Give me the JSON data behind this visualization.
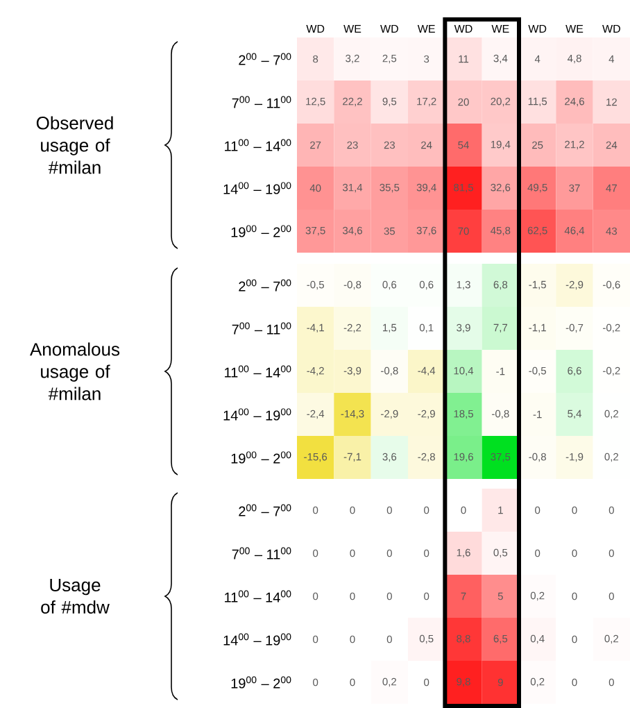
{
  "chart_data": [
    {
      "type": "heatmap",
      "ylabel": "Observed usage of #milan",
      "categories": [
        "WD",
        "WE",
        "WD",
        "WE",
        "WD",
        "WE",
        "WD",
        "WE",
        "WD"
      ],
      "y_categories": [
        "2$^{00}$ – 7$^{00}$",
        "7$^{00}$ – 11$^{00}$",
        "11$^{00}$ – 14$^{00}$",
        "14$^{00}$ – 19$^{00}$",
        "19$^{00}$ – 2$^{00}$"
      ],
      "cells": [
        [
          8,
          3.2,
          2.5,
          3,
          11,
          3.4,
          4,
          4.8,
          4
        ],
        [
          12.5,
          22.2,
          9.5,
          17.2,
          20,
          20.2,
          11.5,
          24.6,
          12
        ],
        [
          27,
          23,
          23,
          24,
          54,
          19.4,
          25,
          21.2,
          24
        ],
        [
          40,
          31.4,
          35.5,
          39.4,
          81.5,
          32.6,
          49.5,
          37,
          47
        ],
        [
          37.5,
          34.6,
          35,
          37.6,
          70,
          45.8,
          62.5,
          46.4,
          43
        ]
      ],
      "cell_labels": [
        [
          "8",
          "3,2",
          "2,5",
          "3",
          "11",
          "3,4",
          "4",
          "4,8",
          "4"
        ],
        [
          "12,5",
          "22,2",
          "9,5",
          "17,2",
          "20",
          "20,2",
          "11,5",
          "24,6",
          "12"
        ],
        [
          "27",
          "23",
          "23",
          "24",
          "54",
          "19,4",
          "25",
          "21,2",
          "24"
        ],
        [
          "40",
          "31,4",
          "35,5",
          "39,4",
          "81,5",
          "32,6",
          "49,5",
          "37",
          "47"
        ],
        [
          "37,5",
          "34,6",
          "35",
          "37,6",
          "70",
          "45,8",
          "62,5",
          "46,4",
          "43"
        ]
      ]
    },
    {
      "type": "heatmap",
      "ylabel": "Anomalous usage of #milan",
      "tick_labels": "y",
      "categories": [
        null,
        null,
        null,
        null,
        null,
        null,
        null,
        null,
        null
      ],
      "y_categories": [
        "2$^{00}$ – 7$^{00}$",
        "7$^{00}$ – 11$^{00}$",
        "11$^{00}$ – 14$^{00}$",
        "14$^{00}$ – 19$^{00}$",
        "19$^{00}$ – 2$^{00}$"
      ],
      "cells": [
        [
          -0.5,
          -0.8,
          0.6,
          0.6,
          1.3,
          6.8,
          -1.5,
          -2.9,
          -0.6
        ],
        [
          -4.1,
          -2.2,
          1.5,
          0.1,
          3.9,
          7.7,
          -1.1,
          -0.7,
          -0.2
        ],
        [
          -4.2,
          -3.9,
          -0.8,
          -4.4,
          10.4,
          -1,
          -0.5,
          6.6,
          -0.2
        ],
        [
          -2.4,
          -14.3,
          -2.9,
          -2.9,
          18.5,
          -0.8,
          -1,
          5.4,
          0.2
        ],
        [
          -15.6,
          -7.1,
          3.6,
          -2.8,
          19.6,
          37.5,
          -0.8,
          -1.9,
          0.2
        ]
      ],
      "cell_labels": [
        [
          "-0,5",
          "-0,8",
          "0,6",
          "0,6",
          "1,3",
          "6,8",
          "-1,5",
          "-2,9",
          "-0,6"
        ],
        [
          "-4,1",
          "-2,2",
          "1,5",
          "0,1",
          "3,9",
          "7,7",
          "-1,1",
          "-0,7",
          "-0,2"
        ],
        [
          "-4,2",
          "-3,9",
          "-0,8",
          "-4,4",
          "10,4",
          "-1",
          "-0,5",
          "6,6",
          "-0,2"
        ],
        [
          "-2,4",
          "-14,3",
          "-2,9",
          "-2,9",
          "18,5",
          "-0,8",
          "-1",
          "5,4",
          "0,2"
        ],
        [
          "-15,6",
          "-7,1",
          "3,6",
          "-2,8",
          "19,6",
          "37,5",
          "-0,8",
          "-1,9",
          "0,2"
        ]
      ]
    },
    {
      "type": "heatmap",
      "ylabel": "Usage of #mdw",
      "tick_labels": "y",
      "categories": [
        null,
        null,
        null,
        null,
        null,
        null,
        null,
        null,
        null
      ],
      "y_categories": [
        "2$^{00}$ – 7$^{00}$",
        "7$^{00}$ – 11$^{00}$",
        "11$^{00}$ – 14$^{00}$",
        "14$^{00}$ – 19$^{00}$",
        "19$^{00}$ – 2$^{00}$"
      ],
      "cells": [
        [
          0,
          0,
          0,
          0,
          0,
          1,
          0,
          0,
          0
        ],
        [
          0,
          0,
          0,
          0,
          1.6,
          0.5,
          0,
          0,
          0
        ],
        [
          0,
          0,
          0,
          0,
          7,
          5,
          0.2,
          0,
          0
        ],
        [
          0,
          0,
          0,
          0.5,
          8.8,
          6.5,
          0.4,
          0,
          0.2
        ],
        [
          0,
          0,
          0.2,
          0,
          9.8,
          9,
          0.2,
          0,
          0
        ]
      ],
      "cell_labels": [
        [
          "0",
          "0",
          "0",
          "0",
          "0",
          "1",
          "0",
          "0",
          "0"
        ],
        [
          "0",
          "0",
          "0",
          "0",
          "1,6",
          "0,5",
          "0",
          "0",
          "0"
        ],
        [
          "0",
          "0",
          "0",
          "0",
          "7",
          "5",
          "0,2",
          "0",
          "0"
        ],
        [
          "0",
          "0",
          "0",
          "0,5",
          "8,8",
          "6,5",
          "0,4",
          "0",
          "0,2"
        ],
        [
          "0",
          "0",
          "0,2",
          "0",
          "9,8",
          "9",
          "0,2",
          "0",
          "0"
        ]
      ]
    }
  ]
}
